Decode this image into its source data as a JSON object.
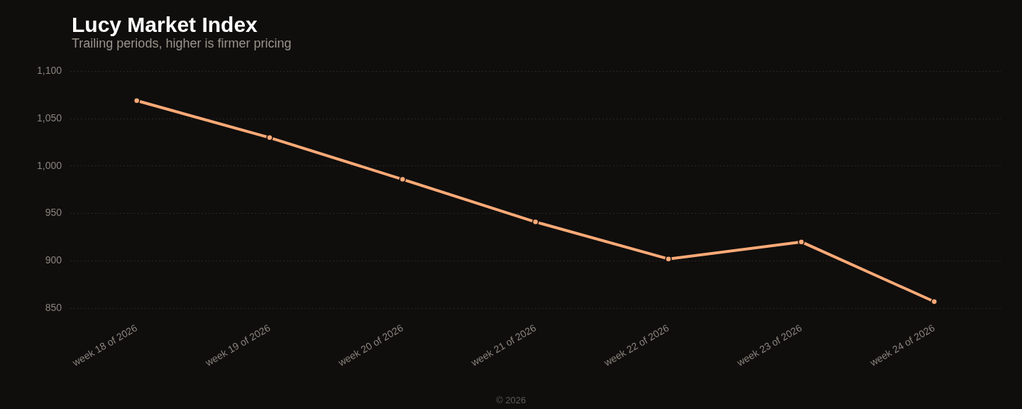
{
  "chart_data": {
    "type": "line",
    "title": "Lucy Market Index",
    "subtitle": "Trailing periods, higher is firmer pricing",
    "categories": [
      "week 18 of 2026",
      "week 19 of 2026",
      "week 20 of 2026",
      "week 21 of 2026",
      "week 22 of 2026",
      "week 23 of 2026",
      "week 24 of 2026"
    ],
    "series": [
      {
        "color": "#ffaa77",
        "values": [
          1069,
          1030,
          986,
          941,
          902,
          920,
          857
        ]
      }
    ],
    "ylim": [
      850,
      1100
    ],
    "yticks": [
      {
        "value": 850,
        "label": "850"
      },
      {
        "value": 900,
        "label": "900"
      },
      {
        "value": 950,
        "label": "950"
      },
      {
        "value": 1000,
        "label": "1,000"
      },
      {
        "value": 1050,
        "label": "1,050"
      },
      {
        "value": 1100,
        "label": "1,100"
      }
    ],
    "grid": "y",
    "marker": "circle",
    "line_style": "solid",
    "legend": false,
    "annotations": [
      "© 2026"
    ]
  }
}
